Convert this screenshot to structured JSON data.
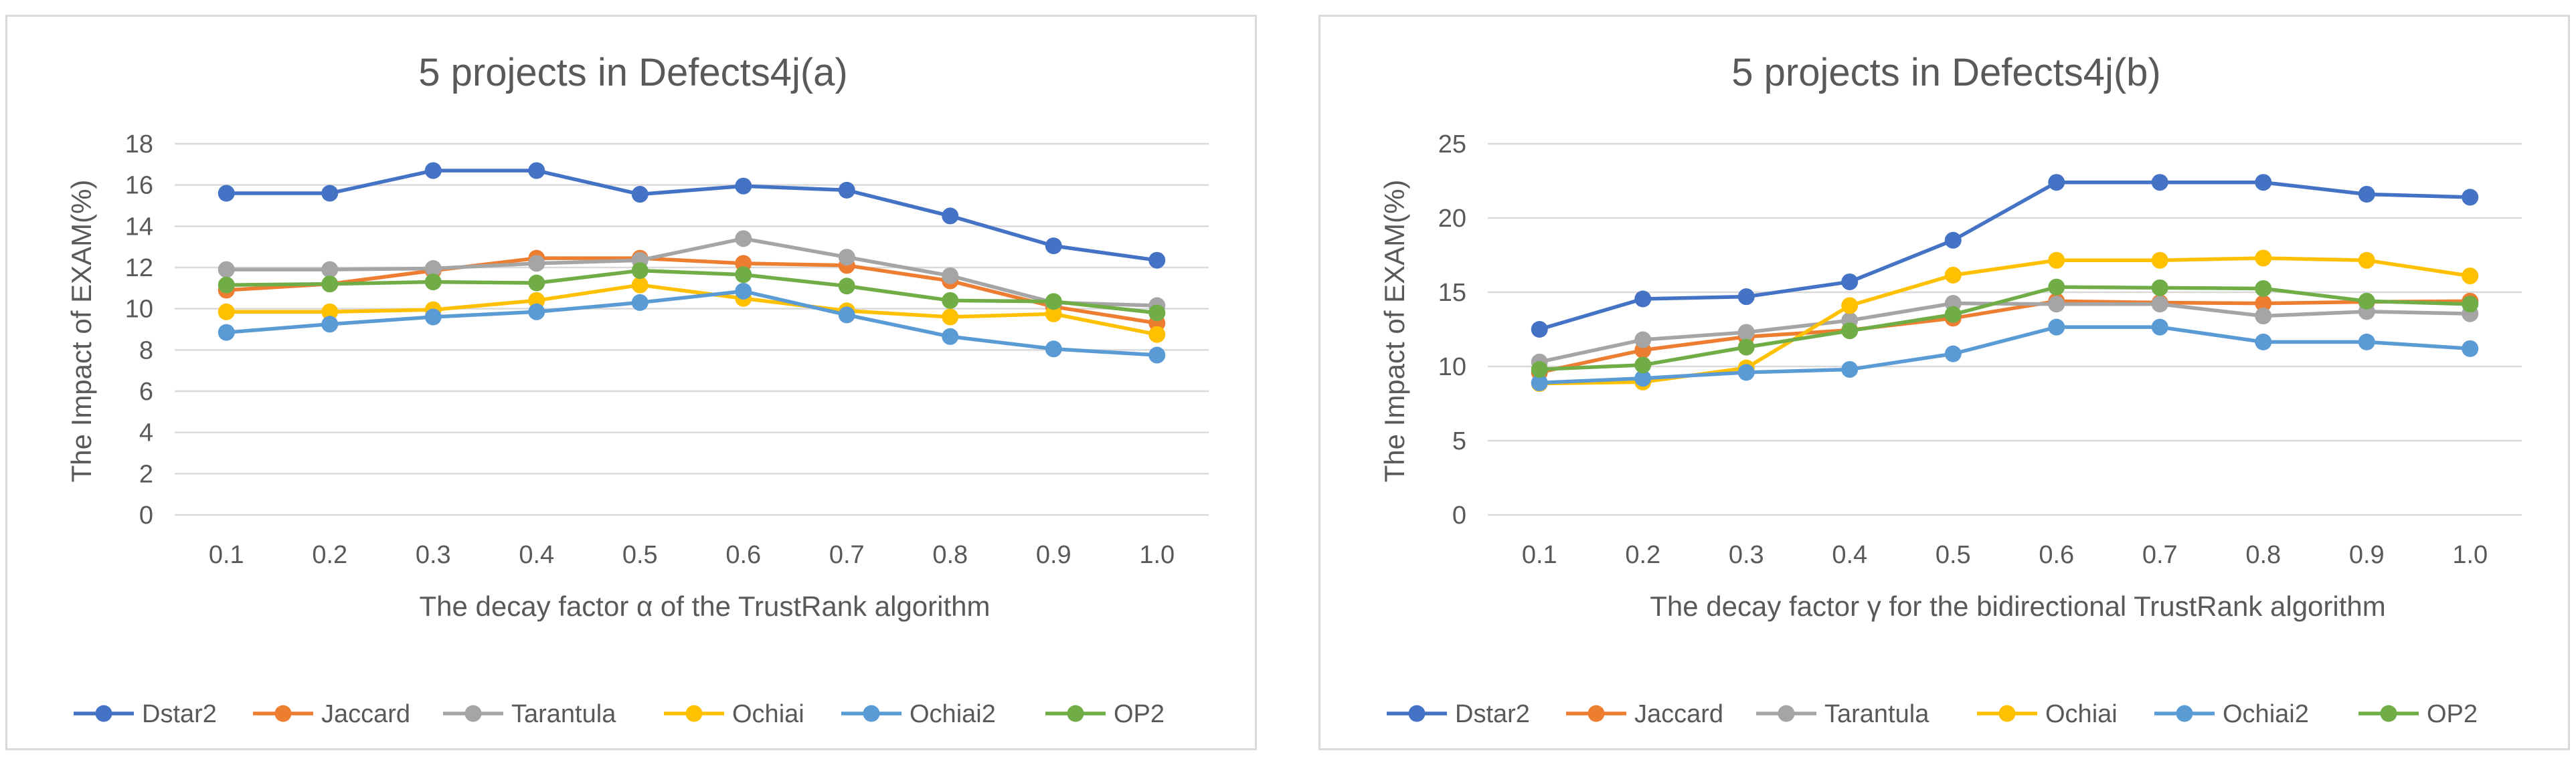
{
  "chart_data": [
    {
      "type": "line",
      "title": "5 projects in Defects4j(a)",
      "xlabel": "The decay factor α of the TrustRank algorithm",
      "ylabel": "The Impact of EXAM(%)",
      "categories": [
        "0.1",
        "0.2",
        "0.3",
        "0.4",
        "0.5",
        "0.6",
        "0.7",
        "0.8",
        "0.9",
        "1.0"
      ],
      "ylim": [
        0,
        18
      ],
      "yticks": [
        0,
        2,
        4,
        6,
        8,
        10,
        12,
        14,
        16,
        18
      ],
      "grid": true,
      "legend_position": "bottom",
      "series": [
        {
          "name": "Dstar2",
          "color": "#4472C4",
          "values": [
            15.6,
            15.6,
            16.7,
            16.7,
            15.55,
            15.95,
            15.75,
            14.5,
            13.05,
            12.35
          ]
        },
        {
          "name": "Jaccard",
          "color": "#ED7D31",
          "values": [
            10.9,
            11.2,
            11.85,
            12.45,
            12.45,
            12.2,
            12.1,
            11.35,
            10.1,
            9.3
          ]
        },
        {
          "name": "Tarantula",
          "color": "#A5A5A5",
          "values": [
            11.9,
            11.9,
            11.95,
            12.2,
            12.35,
            13.4,
            12.5,
            11.6,
            10.3,
            10.15
          ]
        },
        {
          "name": "Ochiai",
          "color": "#FFC000",
          "values": [
            9.85,
            9.85,
            9.95,
            10.4,
            11.15,
            10.5,
            9.9,
            9.6,
            9.75,
            8.75
          ]
        },
        {
          "name": "Ochiai2",
          "color": "#5B9BD5",
          "values": [
            8.85,
            9.25,
            9.6,
            9.85,
            10.3,
            10.85,
            9.7,
            8.65,
            8.05,
            7.75
          ]
        },
        {
          "name": "OP2",
          "color": "#70AD47",
          "values": [
            11.15,
            11.2,
            11.3,
            11.25,
            11.85,
            11.65,
            11.1,
            10.4,
            10.35,
            9.8
          ]
        }
      ]
    },
    {
      "type": "line",
      "title": "5 projects in Defects4j(b)",
      "xlabel": "The decay factor γ for the bidirectional TrustRank algorithm",
      "ylabel": "The Impact of EXAM(%)",
      "categories": [
        "0.1",
        "0.2",
        "0.3",
        "0.4",
        "0.5",
        "0.6",
        "0.7",
        "0.8",
        "0.9",
        "1.0"
      ],
      "ylim": [
        0,
        25
      ],
      "yticks": [
        0,
        5,
        10,
        15,
        20,
        25
      ],
      "grid": true,
      "legend_position": "bottom",
      "series": [
        {
          "name": "Dstar2",
          "color": "#4472C4",
          "values": [
            12.5,
            14.55,
            14.7,
            15.7,
            18.5,
            22.4,
            22.4,
            22.4,
            21.6,
            21.4
          ]
        },
        {
          "name": "Jaccard",
          "color": "#ED7D31",
          "values": [
            9.6,
            11.1,
            12.0,
            12.45,
            13.25,
            14.4,
            14.3,
            14.25,
            14.35,
            14.4
          ]
        },
        {
          "name": "Tarantula",
          "color": "#A5A5A5",
          "values": [
            10.3,
            11.8,
            12.3,
            13.1,
            14.25,
            14.2,
            14.2,
            13.4,
            13.7,
            13.55
          ]
        },
        {
          "name": "Ochiai",
          "color": "#FFC000",
          "values": [
            8.85,
            8.95,
            9.9,
            14.1,
            16.15,
            17.15,
            17.15,
            17.3,
            17.15,
            16.1
          ]
        },
        {
          "name": "Ochiai2",
          "color": "#5B9BD5",
          "values": [
            8.9,
            9.2,
            9.6,
            9.8,
            10.85,
            12.65,
            12.65,
            11.65,
            11.65,
            11.2
          ]
        },
        {
          "name": "OP2",
          "color": "#70AD47",
          "values": [
            9.8,
            10.1,
            11.3,
            12.4,
            13.5,
            15.35,
            15.3,
            15.25,
            14.4,
            14.2
          ]
        }
      ]
    }
  ]
}
